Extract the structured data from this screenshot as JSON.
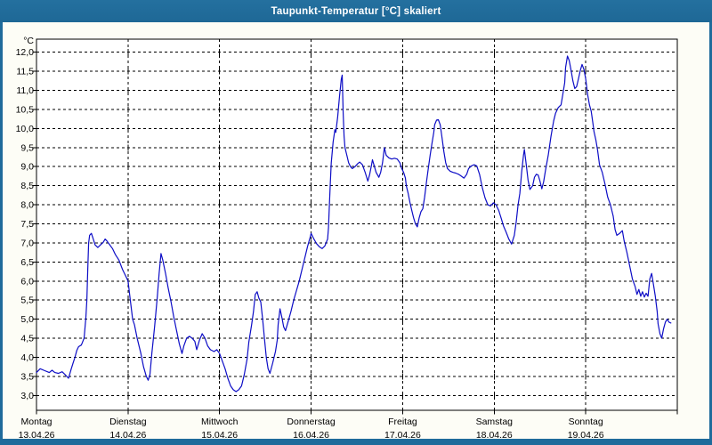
{
  "window": {
    "title": "Taupunkt-Temperatur [°C] skaliert"
  },
  "colors": {
    "titlebar_bg": "#1f6b9b",
    "panel_bg": "#fdfdf6",
    "grid": "#000000",
    "line": "#0d0dc6",
    "title_text": "#ffffff"
  },
  "chart_data": {
    "type": "line",
    "title": "Taupunkt-Temperatur [°C] skaliert",
    "grid": "dashed",
    "legend": "none",
    "y_axis": {
      "unit": "°C",
      "min": 3.0,
      "max": 12.0,
      "step": 0.5,
      "tick_labels": [
        "12,0",
        "11,5",
        "11,0",
        "10,5",
        "10,0",
        "9,5",
        "9,0",
        "8,5",
        "8,0",
        "7,5",
        "7,0",
        "6,5",
        "6,0",
        "5,5",
        "5,0",
        "4,5",
        "4,0",
        "3,5",
        "3,0"
      ]
    },
    "x_axis": {
      "range_days": 7,
      "days": [
        {
          "name": "Montag",
          "date": "13.04.26"
        },
        {
          "name": "Dienstag",
          "date": "14.04.26"
        },
        {
          "name": "Mittwoch",
          "date": "15.04.26"
        },
        {
          "name": "Donnerstag",
          "date": "16.04.26"
        },
        {
          "name": "Freitag",
          "date": "17.04.26"
        },
        {
          "name": "Samstag",
          "date": "18.04.26"
        },
        {
          "name": "Sonntag",
          "date": "19.04.26"
        }
      ]
    },
    "series": [
      {
        "name": "Taupunkt",
        "points": [
          [
            0.0,
            3.6
          ],
          [
            0.04,
            3.7
          ],
          [
            0.09,
            3.65
          ],
          [
            0.14,
            3.6
          ],
          [
            0.17,
            3.66
          ],
          [
            0.2,
            3.6
          ],
          [
            0.24,
            3.58
          ],
          [
            0.28,
            3.62
          ],
          [
            0.31,
            3.55
          ],
          [
            0.35,
            3.45
          ],
          [
            0.38,
            3.7
          ],
          [
            0.4,
            3.85
          ],
          [
            0.42,
            4.0
          ],
          [
            0.44,
            4.18
          ],
          [
            0.46,
            4.28
          ],
          [
            0.49,
            4.32
          ],
          [
            0.52,
            4.5
          ],
          [
            0.54,
            5.05
          ],
          [
            0.55,
            5.5
          ],
          [
            0.56,
            6.3
          ],
          [
            0.57,
            7.0
          ],
          [
            0.58,
            7.2
          ],
          [
            0.6,
            7.25
          ],
          [
            0.62,
            7.1
          ],
          [
            0.64,
            6.95
          ],
          [
            0.67,
            6.88
          ],
          [
            0.7,
            6.95
          ],
          [
            0.73,
            7.02
          ],
          [
            0.75,
            7.1
          ],
          [
            0.77,
            7.05
          ],
          [
            0.8,
            6.95
          ],
          [
            0.83,
            6.85
          ],
          [
            0.86,
            6.7
          ],
          [
            0.9,
            6.55
          ],
          [
            0.94,
            6.3
          ],
          [
            0.97,
            6.15
          ],
          [
            1.0,
            6.0
          ],
          [
            1.02,
            5.6
          ],
          [
            1.05,
            5.0
          ],
          [
            1.07,
            4.85
          ],
          [
            1.1,
            4.5
          ],
          [
            1.14,
            4.1
          ],
          [
            1.17,
            3.75
          ],
          [
            1.2,
            3.5
          ],
          [
            1.22,
            3.4
          ],
          [
            1.24,
            3.55
          ],
          [
            1.26,
            4.1
          ],
          [
            1.29,
            4.8
          ],
          [
            1.32,
            5.6
          ],
          [
            1.34,
            6.2
          ],
          [
            1.36,
            6.72
          ],
          [
            1.38,
            6.55
          ],
          [
            1.41,
            6.2
          ],
          [
            1.44,
            5.8
          ],
          [
            1.47,
            5.45
          ],
          [
            1.5,
            5.05
          ],
          [
            1.53,
            4.7
          ],
          [
            1.56,
            4.35
          ],
          [
            1.59,
            4.1
          ],
          [
            1.61,
            4.3
          ],
          [
            1.64,
            4.5
          ],
          [
            1.67,
            4.55
          ],
          [
            1.7,
            4.5
          ],
          [
            1.73,
            4.42
          ],
          [
            1.75,
            4.2
          ],
          [
            1.78,
            4.45
          ],
          [
            1.81,
            4.62
          ],
          [
            1.84,
            4.5
          ],
          [
            1.87,
            4.3
          ],
          [
            1.9,
            4.2
          ],
          [
            1.94,
            4.15
          ],
          [
            1.97,
            4.2
          ],
          [
            2.0,
            4.1
          ],
          [
            2.03,
            3.9
          ],
          [
            2.06,
            3.7
          ],
          [
            2.09,
            3.45
          ],
          [
            2.12,
            3.25
          ],
          [
            2.15,
            3.15
          ],
          [
            2.18,
            3.1
          ],
          [
            2.21,
            3.15
          ],
          [
            2.24,
            3.25
          ],
          [
            2.27,
            3.55
          ],
          [
            2.3,
            3.95
          ],
          [
            2.32,
            4.4
          ],
          [
            2.35,
            4.85
          ],
          [
            2.37,
            5.2
          ],
          [
            2.39,
            5.65
          ],
          [
            2.41,
            5.72
          ],
          [
            2.43,
            5.55
          ],
          [
            2.45,
            5.45
          ],
          [
            2.47,
            5.0
          ],
          [
            2.49,
            4.5
          ],
          [
            2.51,
            4.0
          ],
          [
            2.53,
            3.7
          ],
          [
            2.55,
            3.58
          ],
          [
            2.58,
            3.85
          ],
          [
            2.61,
            4.15
          ],
          [
            2.63,
            4.45
          ],
          [
            2.64,
            4.85
          ],
          [
            2.66,
            5.27
          ],
          [
            2.68,
            5.05
          ],
          [
            2.7,
            4.8
          ],
          [
            2.72,
            4.7
          ],
          [
            2.75,
            4.95
          ],
          [
            2.78,
            5.2
          ],
          [
            2.81,
            5.5
          ],
          [
            2.84,
            5.75
          ],
          [
            2.87,
            6.0
          ],
          [
            2.9,
            6.3
          ],
          [
            2.93,
            6.6
          ],
          [
            2.96,
            6.9
          ],
          [
            2.99,
            7.15
          ],
          [
            3.0,
            7.25
          ],
          [
            3.03,
            7.1
          ],
          [
            3.06,
            6.98
          ],
          [
            3.09,
            6.9
          ],
          [
            3.12,
            6.85
          ],
          [
            3.15,
            6.92
          ],
          [
            3.18,
            7.1
          ],
          [
            3.19,
            7.4
          ],
          [
            3.2,
            8.0
          ],
          [
            3.21,
            8.6
          ],
          [
            3.22,
            9.1
          ],
          [
            3.24,
            9.65
          ],
          [
            3.26,
            9.97
          ],
          [
            3.27,
            9.9
          ],
          [
            3.29,
            10.3
          ],
          [
            3.31,
            10.85
          ],
          [
            3.33,
            11.3
          ],
          [
            3.34,
            11.4
          ],
          [
            3.35,
            10.4
          ],
          [
            3.36,
            9.8
          ],
          [
            3.37,
            9.5
          ],
          [
            3.39,
            9.3
          ],
          [
            3.41,
            9.1
          ],
          [
            3.43,
            9.0
          ],
          [
            3.45,
            8.95
          ],
          [
            3.48,
            9.0
          ],
          [
            3.51,
            9.08
          ],
          [
            3.53,
            9.12
          ],
          [
            3.56,
            9.05
          ],
          [
            3.59,
            8.85
          ],
          [
            3.62,
            8.62
          ],
          [
            3.64,
            8.8
          ],
          [
            3.66,
            9.05
          ],
          [
            3.67,
            9.18
          ],
          [
            3.69,
            9.02
          ],
          [
            3.71,
            8.85
          ],
          [
            3.74,
            8.72
          ],
          [
            3.76,
            8.85
          ],
          [
            3.78,
            9.1
          ],
          [
            3.8,
            9.5
          ],
          [
            3.82,
            9.3
          ],
          [
            3.85,
            9.23
          ],
          [
            3.88,
            9.2
          ],
          [
            3.91,
            9.22
          ],
          [
            3.94,
            9.2
          ],
          [
            3.97,
            9.1
          ],
          [
            3.99,
            8.95
          ],
          [
            4.01,
            8.85
          ],
          [
            4.03,
            8.7
          ],
          [
            4.04,
            8.5
          ],
          [
            4.06,
            8.3
          ],
          [
            4.08,
            8.05
          ],
          [
            4.1,
            7.85
          ],
          [
            4.12,
            7.65
          ],
          [
            4.14,
            7.5
          ],
          [
            4.16,
            7.42
          ],
          [
            4.18,
            7.65
          ],
          [
            4.2,
            7.82
          ],
          [
            4.22,
            7.9
          ],
          [
            4.24,
            8.2
          ],
          [
            4.26,
            8.6
          ],
          [
            4.28,
            8.95
          ],
          [
            4.3,
            9.3
          ],
          [
            4.32,
            9.6
          ],
          [
            4.34,
            9.9
          ],
          [
            4.35,
            10.1
          ],
          [
            4.37,
            10.22
          ],
          [
            4.39,
            10.23
          ],
          [
            4.41,
            10.1
          ],
          [
            4.43,
            9.75
          ],
          [
            4.45,
            9.4
          ],
          [
            4.47,
            9.1
          ],
          [
            4.49,
            8.95
          ],
          [
            4.52,
            8.88
          ],
          [
            4.55,
            8.85
          ],
          [
            4.58,
            8.83
          ],
          [
            4.61,
            8.8
          ],
          [
            4.64,
            8.75
          ],
          [
            4.67,
            8.7
          ],
          [
            4.7,
            8.8
          ],
          [
            4.72,
            8.95
          ],
          [
            4.75,
            9.02
          ],
          [
            4.78,
            9.05
          ],
          [
            4.81,
            9.02
          ],
          [
            4.84,
            8.8
          ],
          [
            4.87,
            8.45
          ],
          [
            4.9,
            8.18
          ],
          [
            4.93,
            8.0
          ],
          [
            4.96,
            7.97
          ],
          [
            4.99,
            8.05
          ],
          [
            5.02,
            8.0
          ],
          [
            5.05,
            7.85
          ],
          [
            5.08,
            7.62
          ],
          [
            5.1,
            7.45
          ],
          [
            5.13,
            7.28
          ],
          [
            5.16,
            7.1
          ],
          [
            5.19,
            6.97
          ],
          [
            5.22,
            7.2
          ],
          [
            5.24,
            7.55
          ],
          [
            5.26,
            7.98
          ],
          [
            5.28,
            8.3
          ],
          [
            5.3,
            8.85
          ],
          [
            5.32,
            9.3
          ],
          [
            5.33,
            9.45
          ],
          [
            5.35,
            9.05
          ],
          [
            5.37,
            8.65
          ],
          [
            5.39,
            8.4
          ],
          [
            5.42,
            8.5
          ],
          [
            5.44,
            8.72
          ],
          [
            5.46,
            8.8
          ],
          [
            5.48,
            8.78
          ],
          [
            5.5,
            8.62
          ],
          [
            5.52,
            8.42
          ],
          [
            5.54,
            8.6
          ],
          [
            5.56,
            8.9
          ],
          [
            5.59,
            9.3
          ],
          [
            5.62,
            9.8
          ],
          [
            5.65,
            10.2
          ],
          [
            5.67,
            10.4
          ],
          [
            5.7,
            10.55
          ],
          [
            5.73,
            10.62
          ],
          [
            5.75,
            10.9
          ],
          [
            5.77,
            11.2
          ],
          [
            5.78,
            11.6
          ],
          [
            5.8,
            11.9
          ],
          [
            5.82,
            11.78
          ],
          [
            5.84,
            11.52
          ],
          [
            5.86,
            11.25
          ],
          [
            5.88,
            11.05
          ],
          [
            5.9,
            11.1
          ],
          [
            5.92,
            11.3
          ],
          [
            5.94,
            11.52
          ],
          [
            5.96,
            11.68
          ],
          [
            5.98,
            11.55
          ],
          [
            6.0,
            11.3
          ],
          [
            6.02,
            10.9
          ],
          [
            6.04,
            10.62
          ],
          [
            6.06,
            10.45
          ],
          [
            6.08,
            10.1
          ],
          [
            6.09,
            9.92
          ],
          [
            6.11,
            9.7
          ],
          [
            6.13,
            9.42
          ],
          [
            6.15,
            9.05
          ],
          [
            6.18,
            8.85
          ],
          [
            6.21,
            8.55
          ],
          [
            6.24,
            8.2
          ],
          [
            6.27,
            8.0
          ],
          [
            6.3,
            7.7
          ],
          [
            6.32,
            7.35
          ],
          [
            6.34,
            7.2
          ],
          [
            6.37,
            7.25
          ],
          [
            6.4,
            7.32
          ],
          [
            6.42,
            7.05
          ],
          [
            6.45,
            6.75
          ],
          [
            6.48,
            6.4
          ],
          [
            6.51,
            6.05
          ],
          [
            6.54,
            5.85
          ],
          [
            6.56,
            5.65
          ],
          [
            6.58,
            5.78
          ],
          [
            6.6,
            5.6
          ],
          [
            6.62,
            5.72
          ],
          [
            6.64,
            5.58
          ],
          [
            6.66,
            5.68
          ],
          [
            6.68,
            5.6
          ],
          [
            6.7,
            6.05
          ],
          [
            6.72,
            6.2
          ],
          [
            6.74,
            5.9
          ],
          [
            6.76,
            5.6
          ],
          [
            6.78,
            5.2
          ],
          [
            6.79,
            4.88
          ],
          [
            6.81,
            4.62
          ],
          [
            6.83,
            4.5
          ],
          [
            6.85,
            4.75
          ],
          [
            6.87,
            4.92
          ],
          [
            6.89,
            5.0
          ],
          [
            6.91,
            4.92
          ],
          [
            6.93,
            4.9
          ]
        ]
      }
    ]
  }
}
